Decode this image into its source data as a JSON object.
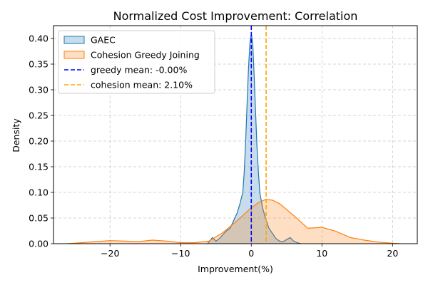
{
  "chart_data": {
    "type": "area",
    "title": "Normalized Cost Improvement: Correlation",
    "xlabel": "Improvement(%)",
    "ylabel": "Density",
    "xlim": [
      -28,
      23.5
    ],
    "ylim": [
      0,
      0.425
    ],
    "xticks": [
      -20,
      -10,
      0,
      10,
      20
    ],
    "xtick_labels": [
      "−20",
      "−10",
      "0",
      "10",
      "20"
    ],
    "yticks": [
      0,
      0.05,
      0.1,
      0.15,
      0.2,
      0.25,
      0.3,
      0.35,
      0.4
    ],
    "ytick_labels": [
      "0.00",
      "0.05",
      "0.10",
      "0.15",
      "0.20",
      "0.25",
      "0.30",
      "0.35",
      "0.40"
    ],
    "grid": true,
    "legend_position": "top-left",
    "series": [
      {
        "name": "GAEC",
        "color": "#1f77b4",
        "x": [
          -6.2,
          -5.5,
          -5.0,
          -4.5,
          -4.0,
          -3.5,
          -3.0,
          -2.5,
          -2.0,
          -1.6,
          -1.2,
          -1.0,
          -0.8,
          -0.6,
          -0.4,
          -0.2,
          0.0,
          0.2,
          0.4,
          0.6,
          0.8,
          1.0,
          1.2,
          1.6,
          2.0,
          2.5,
          3.0,
          3.5,
          4.0,
          4.5,
          5.0,
          5.5,
          6.0,
          6.5,
          7.0
        ],
        "y": [
          0.0,
          0.012,
          0.005,
          0.01,
          0.018,
          0.025,
          0.03,
          0.045,
          0.06,
          0.078,
          0.1,
          0.14,
          0.2,
          0.27,
          0.34,
          0.39,
          0.41,
          0.39,
          0.33,
          0.26,
          0.19,
          0.14,
          0.1,
          0.07,
          0.05,
          0.03,
          0.02,
          0.01,
          0.005,
          0.004,
          0.008,
          0.012,
          0.005,
          0.002,
          0.0
        ]
      },
      {
        "name": "Cohesion Greedy Joining",
        "color": "#ff7f0e",
        "x": [
          -26,
          -24,
          -22,
          -20,
          -18,
          -16,
          -14,
          -12,
          -10,
          -8,
          -6,
          -4,
          -2,
          0,
          1,
          2,
          3,
          4,
          6,
          8,
          10,
          12,
          14,
          16,
          18,
          20,
          21
        ],
        "y": [
          0.0,
          0.002,
          0.004,
          0.006,
          0.005,
          0.004,
          0.007,
          0.005,
          0.002,
          0.002,
          0.005,
          0.022,
          0.045,
          0.07,
          0.08,
          0.086,
          0.085,
          0.078,
          0.055,
          0.03,
          0.032,
          0.024,
          0.012,
          0.007,
          0.003,
          0.001,
          0.0
        ]
      }
    ],
    "reference_lines": [
      {
        "name": "greedy mean: -0.00%",
        "x": 0.0,
        "color": "#0000ff"
      },
      {
        "name": "cohesion mean: 2.10%",
        "x": 2.1,
        "color": "#ffa500"
      }
    ]
  }
}
